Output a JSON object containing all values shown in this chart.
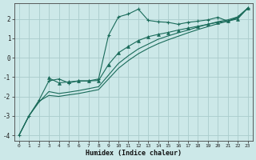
{
  "xlabel": "Humidex (Indice chaleur)",
  "bg_color": "#cce8e8",
  "line_color": "#1a6b5a",
  "grid_color": "#aacccc",
  "xlim": [
    -0.5,
    23.5
  ],
  "ylim": [
    -4.3,
    2.8
  ],
  "xticks": [
    0,
    1,
    2,
    3,
    4,
    5,
    6,
    7,
    8,
    9,
    10,
    11,
    12,
    13,
    14,
    15,
    16,
    17,
    18,
    19,
    20,
    21,
    22,
    23
  ],
  "yticks": [
    -4,
    -3,
    -2,
    -1,
    0,
    1,
    2
  ],
  "line1_x": [
    0,
    1,
    2,
    3,
    4,
    5,
    6,
    7,
    8,
    9,
    10,
    11,
    12,
    13,
    14,
    15,
    16,
    17,
    18,
    19,
    20,
    21,
    22,
    23
  ],
  "line1_y": [
    -4.0,
    -3.0,
    -2.2,
    -1.2,
    -1.1,
    -1.3,
    -1.2,
    -1.2,
    -1.1,
    1.15,
    2.1,
    2.25,
    2.5,
    1.92,
    1.85,
    1.82,
    1.72,
    1.82,
    1.88,
    1.95,
    2.08,
    1.88,
    2.1,
    2.55
  ],
  "line2_x": [
    3,
    4,
    5,
    6,
    7,
    8,
    9,
    10,
    11,
    12,
    13,
    14,
    15,
    16,
    17,
    18,
    19,
    20,
    21,
    22,
    23
  ],
  "line2_y": [
    -1.05,
    -1.3,
    -1.25,
    -1.2,
    -1.2,
    -1.18,
    -0.35,
    0.25,
    0.58,
    0.88,
    1.08,
    1.2,
    1.3,
    1.42,
    1.52,
    1.62,
    1.72,
    1.82,
    1.88,
    2.0,
    2.55
  ],
  "line3_x": [
    0,
    1,
    2,
    3,
    4,
    5,
    6,
    7,
    8,
    9,
    10,
    11,
    12,
    13,
    14,
    15,
    16,
    17,
    18,
    19,
    20,
    21,
    22,
    23
  ],
  "line3_y": [
    -4.0,
    -3.0,
    -2.3,
    -1.75,
    -1.85,
    -1.78,
    -1.7,
    -1.6,
    -1.5,
    -0.9,
    -0.3,
    0.1,
    0.45,
    0.7,
    0.95,
    1.12,
    1.28,
    1.42,
    1.58,
    1.72,
    1.85,
    1.95,
    2.1,
    2.55
  ],
  "line4_x": [
    0,
    1,
    2,
    3,
    4,
    5,
    6,
    7,
    8,
    9,
    10,
    11,
    12,
    13,
    14,
    15,
    16,
    17,
    18,
    19,
    20,
    21,
    22,
    23
  ],
  "line4_y": [
    -4.0,
    -3.0,
    -2.25,
    -1.95,
    -2.0,
    -1.92,
    -1.85,
    -1.75,
    -1.65,
    -1.1,
    -0.55,
    -0.15,
    0.2,
    0.48,
    0.72,
    0.92,
    1.1,
    1.28,
    1.45,
    1.6,
    1.75,
    1.88,
    2.05,
    2.55
  ]
}
